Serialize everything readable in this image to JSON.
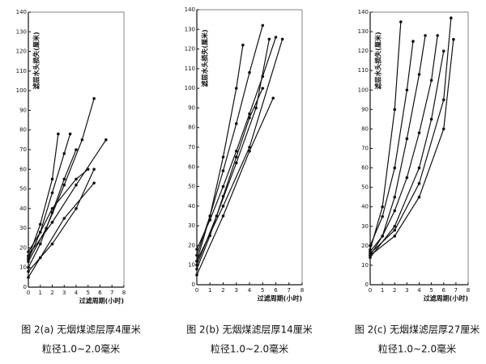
{
  "chart_data": [
    {
      "type": "line",
      "ylabel": "滤层水头损失(厘米)",
      "xlabel": "过滤周期(小时)",
      "caption": "图 2(a)  无烟煤滤层厚4厘米",
      "caption2": "粒径1.0~2.0毫米",
      "color": "#111111",
      "xlim": [
        0,
        8
      ],
      "xticks": [
        0,
        1,
        2,
        3,
        4,
        5,
        6,
        7,
        8
      ],
      "ylim": [
        0,
        140
      ],
      "yticks": [
        0,
        10,
        20,
        30,
        40,
        50,
        60,
        70,
        80,
        90,
        100,
        110,
        120,
        130,
        140
      ],
      "series": [
        {
          "x": [
            0,
            1,
            2,
            2.5
          ],
          "values": [
            15,
            32,
            55,
            78
          ]
        },
        {
          "x": [
            0,
            1,
            2,
            3,
            3.5
          ],
          "values": [
            14,
            28,
            48,
            68,
            78
          ]
        },
        {
          "x": [
            0,
            1.5,
            3,
            4.5,
            5.5
          ],
          "values": [
            13,
            30,
            52,
            75,
            96
          ]
        },
        {
          "x": [
            0,
            2,
            4,
            6.5
          ],
          "values": [
            16,
            33,
            52,
            75
          ]
        },
        {
          "x": [
            0,
            1,
            2,
            3,
            4
          ],
          "values": [
            10,
            22,
            38,
            55,
            70
          ]
        },
        {
          "x": [
            0,
            2,
            4,
            5.5
          ],
          "values": [
            8,
            22,
            40,
            60
          ]
        },
        {
          "x": [
            0,
            1,
            3,
            5.5
          ],
          "values": [
            5,
            15,
            35,
            53
          ]
        },
        {
          "x": [
            0,
            1,
            2,
            4,
            5
          ],
          "values": [
            18,
            28,
            40,
            55,
            60
          ]
        }
      ]
    },
    {
      "type": "line",
      "ylabel": "滤层水头损失(厘米)",
      "xlabel": "过滤周期(小时)",
      "caption": "图 2(b)  无烟煤滤层厚14厘米",
      "caption2": "粒径1.0~2.0毫米",
      "color": "#111111",
      "xlim": [
        0,
        8
      ],
      "xticks": [
        0,
        1,
        2,
        3,
        4,
        5,
        6,
        7,
        8
      ],
      "ylim": [
        0,
        140
      ],
      "yticks": [
        0,
        10,
        20,
        30,
        40,
        50,
        60,
        70,
        80,
        90,
        100,
        110,
        120,
        130,
        140
      ],
      "series": [
        {
          "x": [
            0,
            1,
            2,
            3,
            3.5
          ],
          "values": [
            12,
            35,
            65,
            100,
            122
          ]
        },
        {
          "x": [
            0,
            1,
            2,
            3,
            4,
            5
          ],
          "values": [
            15,
            35,
            58,
            82,
            108,
            132
          ]
        },
        {
          "x": [
            0,
            1.5,
            3,
            4.5,
            5.5
          ],
          "values": [
            10,
            35,
            62,
            90,
            125
          ]
        },
        {
          "x": [
            0,
            1,
            2,
            3,
            4,
            5,
            6
          ],
          "values": [
            18,
            33,
            50,
            68,
            87,
            106,
            126
          ]
        },
        {
          "x": [
            0,
            1,
            2,
            3,
            4,
            5
          ],
          "values": [
            8,
            25,
            45,
            65,
            85,
            100
          ]
        },
        {
          "x": [
            0,
            2,
            4,
            6.5
          ],
          "values": [
            12,
            40,
            70,
            125
          ]
        },
        {
          "x": [
            0,
            2,
            4,
            5.8
          ],
          "values": [
            5,
            35,
            68,
            95
          ]
        }
      ]
    },
    {
      "type": "line",
      "ylabel": "滤层水头损失(厘米)",
      "xlabel": "过滤周期(小时)",
      "caption": "图 2(c)  无烟煤滤层厚27厘米",
      "caption2": "粒径1.0~2.0毫米",
      "color": "#111111",
      "xlim": [
        0,
        8
      ],
      "xticks": [
        0,
        1,
        2,
        3,
        4,
        5,
        6,
        7,
        8
      ],
      "ylim": [
        0,
        140
      ],
      "yticks": [
        0,
        10,
        20,
        30,
        40,
        50,
        60,
        70,
        80,
        90,
        100,
        110,
        120,
        130,
        140
      ],
      "series": [
        {
          "x": [
            0,
            1,
            2,
            2.5
          ],
          "values": [
            18,
            40,
            90,
            135
          ]
        },
        {
          "x": [
            0,
            1,
            2,
            3,
            3.5
          ],
          "values": [
            20,
            35,
            60,
            100,
            125
          ]
        },
        {
          "x": [
            0,
            1,
            2,
            3,
            4,
            4.5
          ],
          "values": [
            15,
            25,
            45,
            75,
            108,
            128
          ]
        },
        {
          "x": [
            0,
            1,
            2,
            3,
            4,
            5,
            5.5
          ],
          "values": [
            17,
            25,
            38,
            55,
            78,
            105,
            128
          ]
        },
        {
          "x": [
            0,
            2,
            4,
            5,
            6
          ],
          "values": [
            14,
            30,
            60,
            85,
            120
          ]
        },
        {
          "x": [
            0,
            2,
            4,
            6,
            6.6
          ],
          "values": [
            16,
            28,
            52,
            95,
            137
          ]
        },
        {
          "x": [
            0,
            2,
            4,
            6,
            6.8
          ],
          "values": [
            15,
            25,
            45,
            80,
            126
          ]
        }
      ]
    }
  ]
}
